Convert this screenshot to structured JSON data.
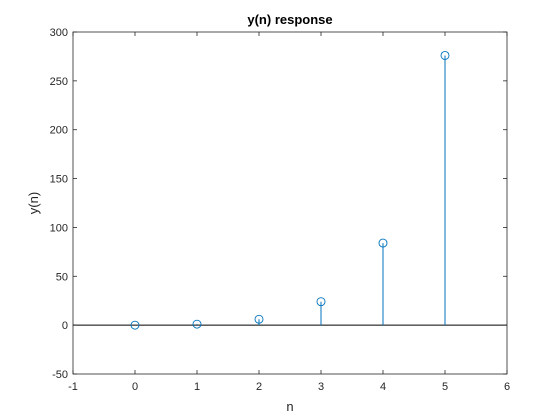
{
  "chart_data": {
    "type": "stem",
    "title": "y(n) response",
    "xlabel": "n",
    "ylabel": "y(n)",
    "xlim": [
      -1,
      6
    ],
    "ylim": [
      -50,
      300
    ],
    "xticks": [
      -1,
      0,
      1,
      2,
      3,
      4,
      5,
      6
    ],
    "yticks": [
      -50,
      0,
      50,
      100,
      150,
      200,
      250,
      300
    ],
    "x": [
      0,
      1,
      2,
      3,
      4,
      5
    ],
    "y": [
      0,
      1,
      6,
      24,
      84,
      276
    ],
    "baseline": 0,
    "color": "#0072BD",
    "grid": false
  }
}
